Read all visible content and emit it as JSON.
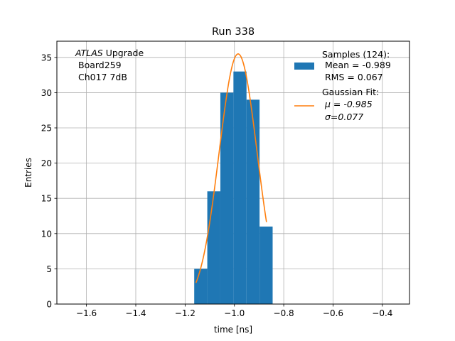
{
  "chart_data": {
    "type": "bar",
    "title": "Run 338",
    "xlabel": "time [ns]",
    "ylabel": "Entries",
    "xlim": [
      -1.72,
      -0.29
    ],
    "ylim": [
      0,
      37.3
    ],
    "grid": true,
    "xticks": [
      -1.6,
      -1.4,
      -1.2,
      -1.0,
      -0.8,
      -0.6,
      -0.4
    ],
    "xtick_labels": [
      "−1.6",
      "−1.4",
      "−1.2",
      "−1.0",
      "−0.8",
      "−0.6",
      "−0.4"
    ],
    "yticks": [
      0,
      5,
      10,
      15,
      20,
      25,
      30,
      35
    ],
    "ytick_labels": [
      "0",
      "5",
      "10",
      "15",
      "20",
      "25",
      "30",
      "35"
    ],
    "annotation": {
      "line1_italic": "ATLAS",
      "line1_rest": " Upgrade",
      "line2": "Board259",
      "line3": "Ch017 7dB"
    },
    "histogram": {
      "name": "Samples (124):",
      "color": "#1f77b4",
      "bin_edges": [
        -1.163,
        -1.11,
        -1.057,
        -1.004,
        -0.951,
        -0.898,
        -0.845
      ],
      "counts": [
        5,
        16,
        30,
        33,
        29,
        11
      ],
      "stats_line1": "Mean = -0.989",
      "stats_line2": "RMS = 0.067"
    },
    "fit": {
      "name": "Gaussian Fit:",
      "color": "#ff7f0e",
      "amplitude": 35.5,
      "mu": -0.985,
      "sigma": 0.077,
      "x_range": [
        -1.156,
        -0.87
      ],
      "mu_label": "μ = -0.985",
      "sigma_label": "σ=0.077"
    },
    "legend_position": "top-right"
  }
}
